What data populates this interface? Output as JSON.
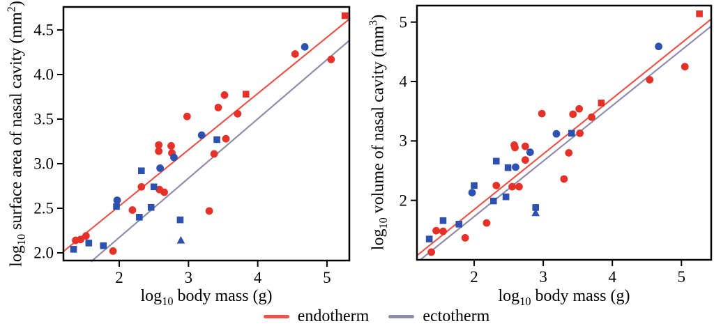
{
  "figure": {
    "description": "Two scatter plots of nasal cavity dimensions versus body mass for endotherms and ectotherms"
  },
  "legend": {
    "position": "bottom-center",
    "items": [
      {
        "label": "endotherm",
        "color": "#e8554a"
      },
      {
        "label": "ectotherm",
        "color": "#8d8dab"
      }
    ]
  },
  "colors": {
    "endotherm_marker": "#e53128",
    "ectotherm_marker": "#2c51af",
    "endotherm_line": "#e8554a",
    "ectotherm_line": "#8d8dab",
    "frame": "#000000"
  },
  "chart_data": [
    {
      "type": "scatter",
      "name": "surface-area-vs-body-mass",
      "ylabel": "log10 surface area of nasal cavity (mm2)",
      "xlabel": "log10 body mass (g)",
      "ylabel_parts": {
        "pre": "log",
        "sub": "10",
        "mid": " surface area of nasal cavity (mm",
        "sup": "2",
        "end": ")"
      },
      "xlabel_parts": {
        "pre": "log",
        "sub": "10",
        "rest": " body mass (g)"
      },
      "xlim": [
        1.194,
        5.323
      ],
      "ylim": [
        1.914,
        4.758
      ],
      "grid": false,
      "xticks": [
        {
          "value": 2,
          "label": "2"
        },
        {
          "value": 3,
          "label": "3"
        },
        {
          "value": 4,
          "label": "4"
        },
        {
          "value": 5,
          "label": "5"
        }
      ],
      "yticks": [
        {
          "value": 2.0,
          "label": "2.0"
        },
        {
          "value": 2.5,
          "label": "2.5"
        },
        {
          "value": 3.0,
          "label": "3.0"
        },
        {
          "value": 3.5,
          "label": "3.5"
        },
        {
          "value": 4.0,
          "label": "4.0"
        },
        {
          "value": 4.5,
          "label": "4.5"
        }
      ],
      "series": [
        {
          "name": "endotherm-circles",
          "group": "endotherm",
          "marker": "circle",
          "color": "#e53128",
          "points": [
            [
              1.37,
              2.14
            ],
            [
              1.44,
              2.15
            ],
            [
              1.52,
              2.19
            ],
            [
              1.91,
              2.02
            ],
            [
              2.19,
              2.48
            ],
            [
              2.32,
              2.74
            ],
            [
              2.58,
              2.71
            ],
            [
              2.65,
              2.68
            ],
            [
              2.57,
              3.21
            ],
            [
              2.57,
              3.14
            ],
            [
              2.75,
              3.2
            ],
            [
              2.76,
              3.12
            ],
            [
              2.98,
              3.53
            ],
            [
              3.3,
              2.47
            ],
            [
              3.37,
              3.11
            ],
            [
              3.43,
              3.63
            ],
            [
              3.52,
              3.77
            ],
            [
              3.54,
              3.28
            ],
            [
              3.71,
              3.56
            ],
            [
              4.54,
              4.23
            ],
            [
              5.06,
              4.17
            ]
          ]
        },
        {
          "name": "endotherm-squares",
          "group": "endotherm",
          "marker": "square",
          "color": "#e53128",
          "points": [
            [
              3.83,
              3.78
            ],
            [
              5.26,
              4.66
            ]
          ]
        },
        {
          "name": "ectotherm-circles",
          "group": "ectotherm",
          "marker": "circle",
          "color": "#2c51af",
          "points": [
            [
              1.97,
              2.59
            ],
            [
              2.59,
              2.95
            ],
            [
              2.79,
              3.07
            ],
            [
              3.19,
              3.32
            ],
            [
              4.68,
              4.31
            ]
          ]
        },
        {
          "name": "ectotherm-squares",
          "group": "ectotherm",
          "marker": "square",
          "color": "#2c51af",
          "points": [
            [
              1.34,
              2.04
            ],
            [
              1.56,
              2.11
            ],
            [
              1.77,
              2.08
            ],
            [
              1.96,
              2.52
            ],
            [
              2.29,
              2.4
            ],
            [
              2.32,
              2.92
            ],
            [
              2.46,
              2.51
            ],
            [
              2.5,
              2.74
            ],
            [
              2.88,
              2.37
            ],
            [
              3.41,
              3.27
            ]
          ]
        },
        {
          "name": "ectotherm-triangles",
          "group": "ectotherm",
          "marker": "triangle",
          "color": "#2c51af",
          "points": [
            [
              2.89,
              2.14
            ]
          ]
        }
      ],
      "lines": [
        {
          "name": "endotherm-fit-line",
          "color": "#e8554a",
          "x1": 1.2,
          "y1": 2.02,
          "x2": 5.32,
          "y2": 4.62
        },
        {
          "name": "ectotherm-fit-line",
          "color": "#8d8dab",
          "x1": 1.59,
          "y1": 1.9,
          "x2": 5.32,
          "y2": 4.38
        }
      ]
    },
    {
      "type": "scatter",
      "name": "volume-vs-body-mass",
      "ylabel": "log10 volume of nasal cavity (mm3)",
      "xlabel": "log10 body mass (g)",
      "ylabel_parts": {
        "pre": "log",
        "sub": "10",
        "mid": " volume of nasal cavity (mm",
        "sup": "3",
        "end": ")"
      },
      "xlabel_parts": {
        "pre": "log",
        "sub": "10",
        "rest": " body mass (g)"
      },
      "xlim": [
        1.172,
        5.431
      ],
      "ylim": [
        1.0,
        5.278
      ],
      "grid": false,
      "xticks": [
        {
          "value": 2,
          "label": "2"
        },
        {
          "value": 3,
          "label": "3"
        },
        {
          "value": 4,
          "label": "4"
        },
        {
          "value": 5,
          "label": "5"
        }
      ],
      "yticks": [
        {
          "value": 2,
          "label": "2"
        },
        {
          "value": 3,
          "label": "3"
        },
        {
          "value": 4,
          "label": "4"
        },
        {
          "value": 5,
          "label": "5"
        }
      ],
      "series": [
        {
          "name": "endotherm-circles",
          "group": "endotherm",
          "marker": "circle",
          "color": "#e53128",
          "points": [
            [
              1.38,
              1.13
            ],
            [
              1.45,
              1.49
            ],
            [
              1.55,
              1.48
            ],
            [
              1.87,
              1.37
            ],
            [
              2.18,
              1.62
            ],
            [
              2.32,
              2.25
            ],
            [
              2.55,
              2.23
            ],
            [
              2.65,
              2.23
            ],
            [
              2.58,
              2.93
            ],
            [
              2.59,
              2.89
            ],
            [
              2.74,
              2.91
            ],
            [
              2.74,
              2.68
            ],
            [
              2.98,
              3.46
            ],
            [
              3.3,
              2.36
            ],
            [
              3.37,
              2.8
            ],
            [
              3.43,
              3.45
            ],
            [
              3.52,
              3.54
            ],
            [
              3.53,
              3.13
            ],
            [
              3.7,
              3.4
            ],
            [
              4.54,
              4.03
            ],
            [
              5.05,
              4.25
            ]
          ]
        },
        {
          "name": "endotherm-squares",
          "group": "endotherm",
          "marker": "square",
          "color": "#e53128",
          "points": [
            [
              3.84,
              3.64
            ],
            [
              5.26,
              5.14
            ]
          ]
        },
        {
          "name": "ectotherm-circles",
          "group": "ectotherm",
          "marker": "circle",
          "color": "#2c51af",
          "points": [
            [
              1.97,
              2.13
            ],
            [
              2.6,
              2.56
            ],
            [
              2.81,
              2.81
            ],
            [
              3.19,
              3.12
            ],
            [
              4.67,
              4.59
            ]
          ]
        },
        {
          "name": "ectotherm-squares",
          "group": "ectotherm",
          "marker": "square",
          "color": "#2c51af",
          "points": [
            [
              1.35,
              1.35
            ],
            [
              1.55,
              1.66
            ],
            [
              1.78,
              1.6
            ],
            [
              2.0,
              2.25
            ],
            [
              2.28,
              1.99
            ],
            [
              2.32,
              2.66
            ],
            [
              2.46,
              2.06
            ],
            [
              2.49,
              2.55
            ],
            [
              2.89,
              1.88
            ],
            [
              3.41,
              3.13
            ]
          ]
        },
        {
          "name": "ectotherm-triangles",
          "group": "ectotherm",
          "marker": "triangle",
          "color": "#2c51af",
          "points": [
            [
              2.89,
              1.79
            ]
          ]
        }
      ],
      "lines": [
        {
          "name": "endotherm-fit-line",
          "color": "#e8554a",
          "x1": 1.18,
          "y1": 1.08,
          "x2": 5.43,
          "y2": 5.05
        },
        {
          "name": "ectotherm-fit-line",
          "color": "#8d8dab",
          "x1": 1.22,
          "y1": 1.0,
          "x2": 5.43,
          "y2": 4.93
        }
      ]
    }
  ]
}
